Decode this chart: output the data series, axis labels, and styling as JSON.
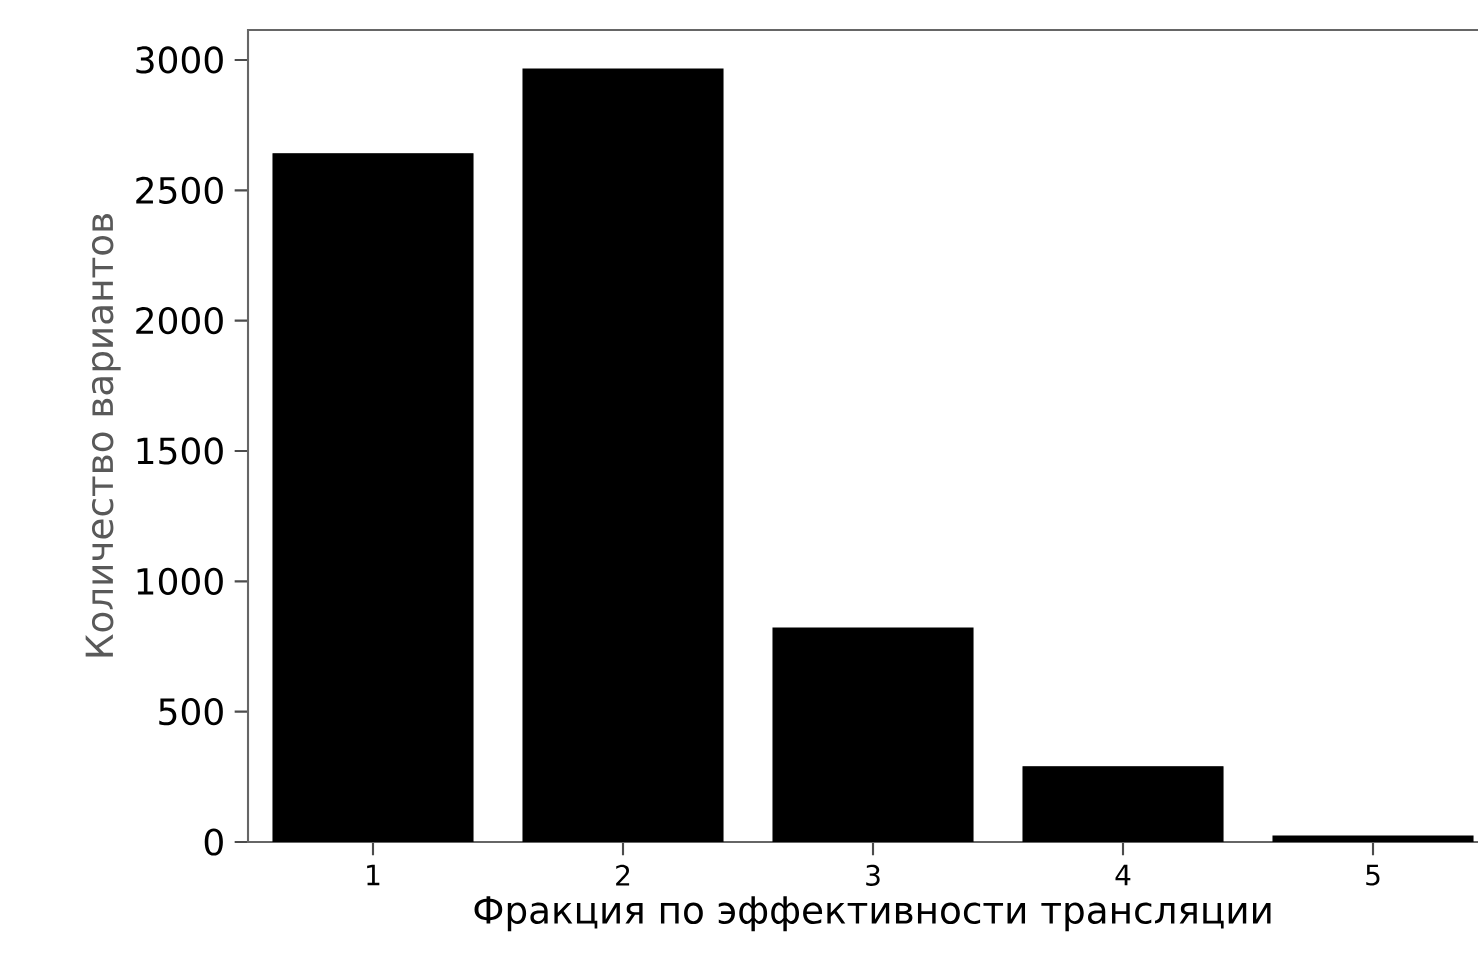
{
  "chart_data": {
    "type": "bar",
    "xlabel": "Фракция по эффективности трансляции",
    "ylabel": "Количество вариантов",
    "categories": [
      "1",
      "2",
      "3",
      "4",
      "5"
    ],
    "values": [
      2640,
      2965,
      821,
      289,
      23
    ],
    "color": "#000000",
    "ylim": [
      0,
      3115
    ],
    "yticks": [
      0,
      500,
      1000,
      1500,
      2000,
      2500,
      3000
    ],
    "grid": false
  }
}
